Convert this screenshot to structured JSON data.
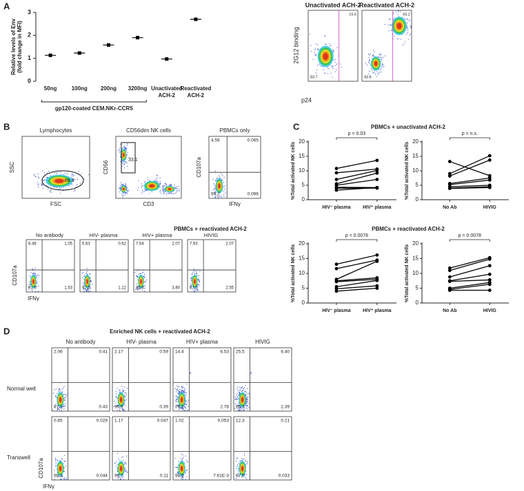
{
  "panel_labels": [
    "A",
    "B",
    "C",
    "D"
  ],
  "chart_data": [
    {
      "type": "dot",
      "ylabel": [
        "Relative levels of Env",
        "(fold change in MFI)"
      ],
      "categories": [
        "50ng",
        "100ng",
        "200ng",
        "3200ng",
        "Unactivated ACH-2",
        "Reactivated ACH-2"
      ],
      "values": [
        1.13,
        1.23,
        1.58,
        1.9,
        0.97,
        2.7
      ],
      "color": "#000000",
      "ylim": [
        0,
        3
      ],
      "yticks": [
        0,
        1,
        2,
        3
      ],
      "group_label": "gp120-coated CEM.NKr-CCR5"
    },
    {
      "type": "paired",
      "ylabel": "%Total activated NK cells",
      "categories": [
        "HIV⁻ plasma",
        "HIV⁺ plasma"
      ],
      "p_value": "p = 0.03",
      "ylim": [
        0,
        20
      ],
      "yticks": [
        0,
        5,
        10,
        15,
        20
      ],
      "series": [
        {
          "color": "#000000",
          "values": [
            10.8,
            13.6
          ]
        },
        {
          "color": "#000000",
          "values": [
            9.3,
            10.6
          ]
        },
        {
          "color": "#000000",
          "values": [
            7.0,
            10.1
          ]
        },
        {
          "color": "#000000",
          "values": [
            5.5,
            9.2
          ]
        },
        {
          "color": "#000000",
          "values": [
            5.0,
            7.0
          ]
        },
        {
          "color": "#000000",
          "values": [
            4.3,
            4.2
          ]
        },
        {
          "color": "#000000",
          "values": [
            4.0,
            4.0
          ]
        },
        {
          "color": "#000000",
          "values": [
            3.3,
            4.2
          ]
        }
      ]
    },
    {
      "type": "paired",
      "ylabel": "%Total activated NK cells",
      "categories": [
        "No Ab",
        "HIVIG"
      ],
      "p_value": "p = n.s.",
      "ylim": [
        0,
        20
      ],
      "yticks": [
        0,
        5,
        10,
        15,
        20
      ],
      "series": [
        {
          "color": "#000000",
          "values": [
            13.2,
            8.3
          ]
        },
        {
          "color": "#000000",
          "values": [
            9.0,
            15.2
          ]
        },
        {
          "color": "#000000",
          "values": [
            8.2,
            13.7
          ]
        },
        {
          "color": "#000000",
          "values": [
            5.6,
            7.5
          ]
        },
        {
          "color": "#000000",
          "values": [
            5.2,
            6.8
          ]
        },
        {
          "color": "#000000",
          "values": [
            4.5,
            5.0
          ]
        },
        {
          "color": "#000000",
          "values": [
            4.0,
            4.5
          ]
        },
        {
          "color": "#000000",
          "values": [
            3.9,
            4.2
          ]
        }
      ]
    },
    {
      "type": "paired",
      "ylabel": "%Total activated NK cells",
      "categories": [
        "HIV⁻ plasma",
        "HIV⁺ plasma"
      ],
      "p_value": "p = 0.0078",
      "ylim": [
        0,
        20
      ],
      "yticks": [
        0,
        5,
        10,
        15,
        20
      ],
      "series": [
        {
          "color": "#000000",
          "values": [
            13.1,
            16.2
          ]
        },
        {
          "color": "#000000",
          "values": [
            11.6,
            14.5
          ]
        },
        {
          "color": "#000000",
          "values": [
            8.0,
            14.1
          ]
        },
        {
          "color": "#000000",
          "values": [
            7.5,
            8.5
          ]
        },
        {
          "color": "#000000",
          "values": [
            7.2,
            8.0
          ]
        },
        {
          "color": "#000000",
          "values": [
            5.5,
            7.6
          ]
        },
        {
          "color": "#000000",
          "values": [
            4.8,
            5.8
          ]
        },
        {
          "color": "#000000",
          "values": [
            4.0,
            5.0
          ]
        }
      ]
    },
    {
      "type": "paired",
      "ylabel": "%Total activated NK cells",
      "categories": [
        "No Ab",
        "HIVIG"
      ],
      "p_value": "p = 0.0078",
      "ylim": [
        0,
        20
      ],
      "yticks": [
        0,
        5,
        10,
        15,
        20
      ],
      "series": [
        {
          "color": "#000000",
          "values": [
            11.8,
            15.3
          ]
        },
        {
          "color": "#000000",
          "values": [
            11.0,
            14.8
          ]
        },
        {
          "color": "#000000",
          "values": [
            8.8,
            12.6
          ]
        },
        {
          "color": "#000000",
          "values": [
            7.5,
            9.7
          ]
        },
        {
          "color": "#000000",
          "values": [
            7.3,
            7.8
          ]
        },
        {
          "color": "#000000",
          "values": [
            5.0,
            6.9
          ]
        },
        {
          "color": "#000000",
          "values": [
            4.6,
            6.3
          ]
        },
        {
          "color": "#000000",
          "values": [
            4.3,
            4.3
          ]
        }
      ]
    }
  ],
  "panel_c_titles": [
    "PBMCs + unactivated ACH-2",
    "PBMCs + reactivated ACH-2"
  ],
  "flow_a": {
    "ylabel": "2G12 binding",
    "xlabel": "p24",
    "plots": [
      {
        "title": "Unactivated ACH-2",
        "gates": [
          "15.5",
          "83.7"
        ]
      },
      {
        "title": "Reactivated ACH-2",
        "gates": [
          "55.2",
          "43.5"
        ]
      }
    ]
  },
  "flow_b": {
    "gating": [
      {
        "title": "Lymphocytes",
        "ylabel": "SSC",
        "xlabel": "FSC",
        "gate": "88.9"
      },
      {
        "title": "CD56dim NK cells",
        "ylabel": "CD56",
        "xlabel": "CD3",
        "gate": "33.1"
      },
      {
        "title": "PBMCs only",
        "ylabel": "CD107a",
        "xlabel": "IFNγ",
        "quadrants": [
          "4.59",
          "0.065",
          "95.2",
          "0.096"
        ]
      }
    ],
    "title": "PBMCs + reactivated ACH-2",
    "ylabel": "CD107a",
    "xlabel": "IFNγ",
    "plots": [
      {
        "title": "No antibody",
        "quadrants": [
          "6.46",
          "1.05",
          "91.0",
          "1.53"
        ]
      },
      {
        "title": "HIV- plasma",
        "quadrants": [
          "5.63",
          "0.62",
          "92.6",
          "1.12"
        ]
      },
      {
        "title": "HIV+ plasma",
        "quadrants": [
          "7.54",
          "2.07",
          "86.6",
          "3.80"
        ]
      },
      {
        "title": "HIVIG",
        "quadrants": [
          "7.93",
          "2.07",
          "87.5",
          "2.55"
        ]
      }
    ]
  },
  "flow_d": {
    "title": "Enriched NK cells + reactivated ACH-2",
    "ylabel": "CD107a",
    "xlabel": "IFNγ",
    "columns": [
      "No antibody",
      "HIV- plasma",
      "HIV+ plasma",
      "HIVIG"
    ],
    "rows": [
      {
        "label": "Normal well",
        "quadrants": [
          [
            "2.06",
            "0.41",
            "97.1",
            "0.43"
          ],
          [
            "2.17",
            "0.59",
            "96.9",
            "0.39"
          ],
          [
            "14.4",
            "6.53",
            "76.3",
            "2.78"
          ],
          [
            "25.5",
            "6.40",
            "65.7",
            "2.39"
          ]
        ]
      },
      {
        "label": "Transwell",
        "quadrants": [
          [
            "0.85",
            "0.028",
            "99.1",
            "0.044"
          ],
          [
            "1.17",
            "0.047",
            "98.7",
            "0.11"
          ],
          [
            "1.02",
            "0.053",
            "98.9",
            "7.61E-3"
          ],
          [
            "12.3",
            "0.21",
            "87.5",
            "0.033"
          ]
        ]
      }
    ]
  }
}
